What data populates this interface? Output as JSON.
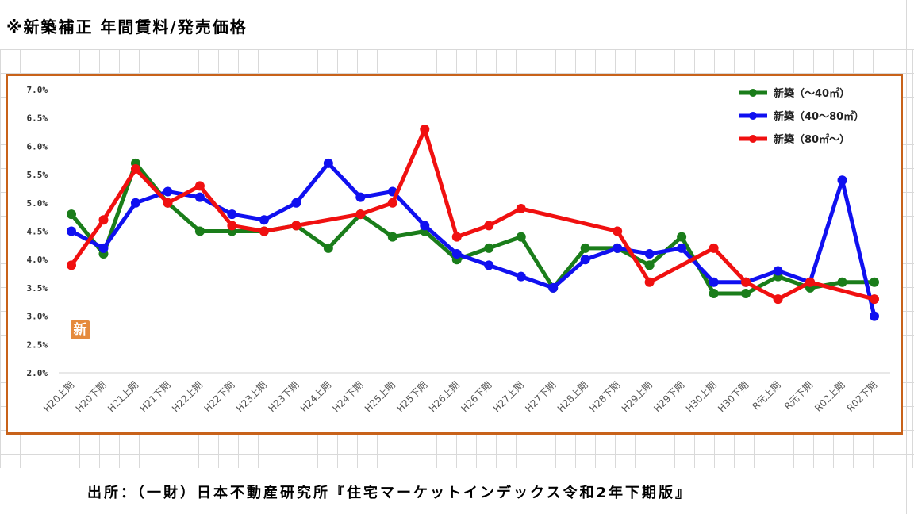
{
  "title": "※新築補正 年間賃料/発売価格",
  "source_text": "出所：（一財）日本不動産研究所『住宅マーケットインデックス令和2年下期版』",
  "stamp_text": "新",
  "colors": {
    "frame": "#c8621a",
    "grid": "#d9d9d9"
  },
  "chart_data": {
    "type": "line",
    "categories": [
      "H20上期",
      "H20下期",
      "H21上期",
      "H21下期",
      "H22上期",
      "H22下期",
      "H23上期",
      "H23下期",
      "H24上期",
      "H24下期",
      "H25上期",
      "H25下期",
      "H26上期",
      "H26下期",
      "H27上期",
      "H27下期",
      "H28上期",
      "H28下期",
      "H29上期",
      "H29下期",
      "H30上期",
      "H30下期",
      "R元上期",
      "R元下期",
      "R02上期",
      "R02下期"
    ],
    "yticks": [
      "2.0%",
      "2.5%",
      "3.0%",
      "3.5%",
      "4.0%",
      "4.5%",
      "5.0%",
      "5.5%",
      "6.0%",
      "6.5%",
      "7.0%"
    ],
    "ylim": [
      2.0,
      7.0
    ],
    "y_unit": "%",
    "legend_position": "top-right",
    "series": [
      {
        "name": "新築（～40㎡）",
        "color": "#1a7d1a",
        "values": [
          4.8,
          4.1,
          5.7,
          5.0,
          4.5,
          4.5,
          4.5,
          4.6,
          4.2,
          4.8,
          4.4,
          4.5,
          4.0,
          4.2,
          4.4,
          3.5,
          4.2,
          4.2,
          3.9,
          4.4,
          3.4,
          3.4,
          3.7,
          3.5,
          3.6,
          3.6
        ]
      },
      {
        "name": "新築（40～80㎡）",
        "color": "#1010f0",
        "values": [
          4.5,
          4.2,
          5.0,
          5.2,
          5.1,
          4.8,
          4.7,
          5.0,
          5.7,
          5.1,
          5.2,
          4.6,
          4.1,
          3.9,
          3.7,
          3.5,
          4.0,
          4.2,
          4.1,
          4.2,
          3.6,
          3.6,
          3.8,
          3.6,
          5.4,
          3.0
        ]
      },
      {
        "name": "新築（80㎡～）",
        "color": "#f01010",
        "values": [
          3.9,
          4.7,
          5.6,
          5.0,
          5.3,
          4.6,
          4.5,
          4.6,
          null,
          4.8,
          5.0,
          6.3,
          4.4,
          4.6,
          4.9,
          null,
          null,
          4.5,
          3.6,
          null,
          4.2,
          3.6,
          3.3,
          3.6,
          null,
          3.3
        ]
      }
    ]
  }
}
